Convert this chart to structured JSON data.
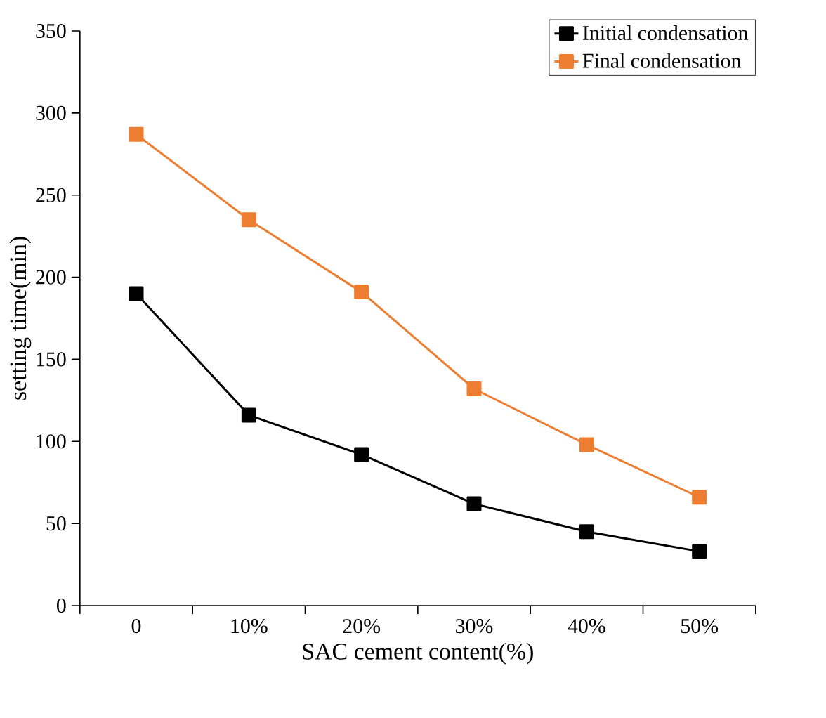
{
  "chart_data": {
    "type": "line",
    "xlabel": "SAC cement content(%)",
    "ylabel": "setting time(min)",
    "categories": [
      "0",
      "10%",
      "20%",
      "30%",
      "40%",
      "50%"
    ],
    "series": [
      {
        "name": "Initial condensation",
        "color": "#000000",
        "values": [
          190,
          116,
          92,
          62,
          45,
          33
        ]
      },
      {
        "name": "Final condensation",
        "color": "#ed7d31",
        "values": [
          287,
          235,
          191,
          132,
          98,
          66
        ]
      }
    ],
    "ylim": [
      0,
      350
    ],
    "yticks": [
      0,
      50,
      100,
      150,
      200,
      250,
      300,
      350
    ],
    "marker": "square",
    "legend": "top right",
    "grid": false
  }
}
